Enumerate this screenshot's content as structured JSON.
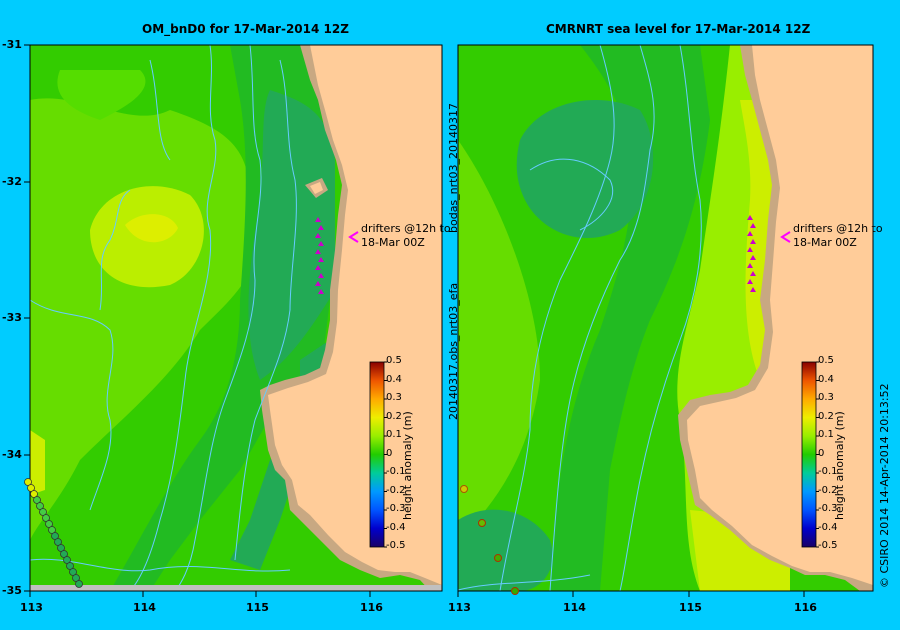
{
  "left_panel": {
    "title": "OM_bnD0 for 17-Mar-2014 12Z",
    "annotation_line1": "drifters @12h to",
    "annotation_line2": "18-Mar 00Z",
    "colorbar_label": "height anomaly (m)"
  },
  "right_panel": {
    "title": "CMRNRT sea level  for 17-Mar-2014 12Z",
    "annotation_line1": "drifters @12h to",
    "annotation_line2": "18-Mar 00Z",
    "colorbar_label": "height anomaly (m)"
  },
  "side_text_upper": "bodas_nrt03_20140317",
  "side_text_lower": "20140317.obs_nrt03_efa",
  "credit": "© CSIRO 2014   14-Apr-2014 20:13:52",
  "x_ticks": [
    "113",
    "114",
    "115",
    "116"
  ],
  "y_ticks": [
    "-31",
    "-32",
    "-33",
    "-34",
    "-35"
  ],
  "colorbar_ticks": [
    "0.5",
    "0.4",
    "0.3",
    "0.2",
    "0.1",
    "0",
    "-0.1",
    "-0.2",
    "-0.3",
    "-0.4",
    "-0.5"
  ],
  "colors": {
    "background": "#00ccff",
    "land": "#ffcc99",
    "coast_band": "#c8a882",
    "contour": "#66ccff",
    "drifter": "#cc00cc"
  },
  "map_data": {
    "lon_range": [
      113,
      116.6
    ],
    "lat_range": [
      -35,
      -31
    ],
    "colorbar_range": [
      -0.5,
      0.5
    ]
  }
}
